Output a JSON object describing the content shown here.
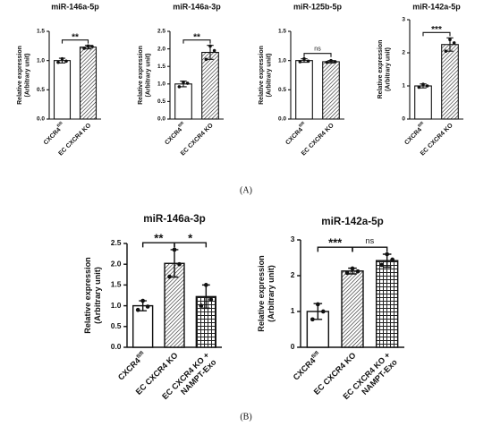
{
  "panel_labels": [
    "(A)",
    "(B)"
  ],
  "chart_data": [
    {
      "type": "bar",
      "title": "miR-146a-5p",
      "ylabel": [
        "Relative expression",
        "(Arbitrary unit)"
      ],
      "categories": [
        {
          "text": "CXCR4",
          "sup": "fl/fl"
        },
        "EC CXCR4 KO"
      ],
      "values": [
        1.0,
        1.23
      ],
      "errors": [
        0.04,
        0.03
      ],
      "points": [
        [
          0.97,
          1.03,
          0.99
        ],
        [
          1.21,
          1.25,
          1.24
        ]
      ],
      "fills": [
        "open",
        "hatch"
      ],
      "ylim": [
        0,
        1.5
      ],
      "yticks": [
        {
          "value": 0,
          "label": "0.0"
        },
        {
          "value": 0.5,
          "label": "0.5"
        },
        {
          "value": 1,
          "label": "1.0"
        },
        {
          "value": 1.5,
          "label": "1.5"
        }
      ],
      "comparisons": [
        {
          "pair": [
            0,
            1
          ],
          "label": "**"
        }
      ]
    },
    {
      "type": "bar",
      "title": "miR-146a-3p",
      "ylabel": [
        "Relative expression",
        "(Arbitrary unit)"
      ],
      "categories": [
        {
          "text": "CXCR4",
          "sup": "fl/fl"
        },
        "EC CXCR4 KO"
      ],
      "values": [
        1.0,
        1.9
      ],
      "errors": [
        0.08,
        0.2
      ],
      "points": [
        [
          0.92,
          1.05,
          1.02
        ],
        [
          1.7,
          2.08,
          1.95
        ]
      ],
      "fills": [
        "open",
        "hatch"
      ],
      "ylim": [
        0,
        2.5
      ],
      "yticks": [
        {
          "value": 0,
          "label": "0.0"
        },
        {
          "value": 0.5,
          "label": "0.5"
        },
        {
          "value": 1,
          "label": "1.0"
        },
        {
          "value": 1.5,
          "label": "1.5"
        },
        {
          "value": 2,
          "label": "2.0"
        },
        {
          "value": 2.5,
          "label": "2.5"
        }
      ],
      "comparisons": [
        {
          "pair": [
            0,
            1
          ],
          "label": "**"
        }
      ]
    },
    {
      "type": "bar",
      "title": "miR-125b-5p",
      "ylabel": [
        "Relative expression",
        "(Arbitrary unit)"
      ],
      "categories": [
        {
          "text": "CXCR4",
          "sup": "fl/fl"
        },
        "EC CXCR4 KO"
      ],
      "values": [
        1.0,
        0.98
      ],
      "errors": [
        0.03,
        0.02
      ],
      "points": [
        [
          0.98,
          1.03,
          0.99
        ],
        [
          0.97,
          1.0,
          0.98
        ]
      ],
      "fills": [
        "open",
        "hatch"
      ],
      "ylim": [
        0,
        1.5
      ],
      "yticks": [
        {
          "value": 0,
          "label": "0.0"
        },
        {
          "value": 0.5,
          "label": "0.5"
        },
        {
          "value": 1,
          "label": "1.0"
        },
        {
          "value": 1.5,
          "label": "1.5"
        }
      ],
      "comparisons": [
        {
          "pair": [
            0,
            1
          ],
          "label": "ns"
        }
      ]
    },
    {
      "type": "bar",
      "title": "miR-142a-5p",
      "ylabel": [
        "Relative expression",
        "(Arbitrary unit)"
      ],
      "categories": [
        {
          "text": "CXCR4",
          "sup": "fl/fl"
        },
        "EC CXCR4 KO"
      ],
      "values": [
        1.0,
        2.25
      ],
      "errors": [
        0.06,
        0.2
      ],
      "points": [
        [
          0.96,
          1.05,
          1.0
        ],
        [
          2.05,
          2.4,
          2.3
        ]
      ],
      "fills": [
        "open",
        "hatch"
      ],
      "ylim": [
        0,
        3
      ],
      "yticks": [
        0,
        1,
        2,
        3
      ],
      "comparisons": [
        {
          "pair": [
            0,
            1
          ],
          "label": "***"
        }
      ]
    },
    {
      "type": "bar",
      "title": "miR-146a-3p",
      "ylabel": [
        "Relative expression",
        "(Arbitrary unit)"
      ],
      "categories": [
        {
          "text": "CXCR4",
          "sup": "fl/fl"
        },
        "EC CXCR4 KO",
        {
          "lines": [
            "EC CXCR4 KO +",
            "NAMPT-Exo"
          ]
        }
      ],
      "values": [
        1.0,
        2.02,
        1.22
      ],
      "errors": [
        0.12,
        0.33,
        0.28
      ],
      "points": [
        [
          0.9,
          1.12,
          0.98
        ],
        [
          1.7,
          2.35,
          2.0
        ],
        [
          1.0,
          1.5,
          1.15
        ]
      ],
      "fills": [
        "open",
        "hatch",
        "crosshatch"
      ],
      "ylim": [
        0,
        2.5
      ],
      "yticks": [
        {
          "value": 0,
          "label": "0.0"
        },
        {
          "value": 0.5,
          "label": "0.5"
        },
        {
          "value": 1,
          "label": "1.0"
        },
        {
          "value": 1.5,
          "label": "1.5"
        },
        {
          "value": 2,
          "label": "2.0"
        },
        {
          "value": 2.5,
          "label": "2.5"
        }
      ],
      "comparisons": [
        {
          "pair": [
            0,
            1
          ],
          "label": "**"
        },
        {
          "pair": [
            1,
            2
          ],
          "label": "*"
        }
      ]
    },
    {
      "type": "bar",
      "title": "miR-142a-5p",
      "ylabel": [
        "Relative expression",
        "(Arbitrary unit)"
      ],
      "categories": [
        {
          "text": "CXCR4",
          "sup": "fl/fl"
        },
        "EC CXCR4 KO",
        {
          "lines": [
            "EC CXCR4 KO +",
            "NAMPT-Exo"
          ]
        }
      ],
      "values": [
        1.0,
        2.13,
        2.42
      ],
      "errors": [
        0.22,
        0.08,
        0.18
      ],
      "points": [
        [
          0.78,
          1.2,
          1.0
        ],
        [
          2.08,
          2.2,
          2.12
        ],
        [
          2.3,
          2.6,
          2.45
        ]
      ],
      "fills": [
        "open",
        "hatch",
        "crosshatch"
      ],
      "ylim": [
        0,
        3
      ],
      "yticks": [
        0,
        1,
        2,
        3
      ],
      "comparisons": [
        {
          "pair": [
            0,
            1
          ],
          "label": "***"
        },
        {
          "pair": [
            1,
            2
          ],
          "label": "ns"
        }
      ]
    }
  ]
}
